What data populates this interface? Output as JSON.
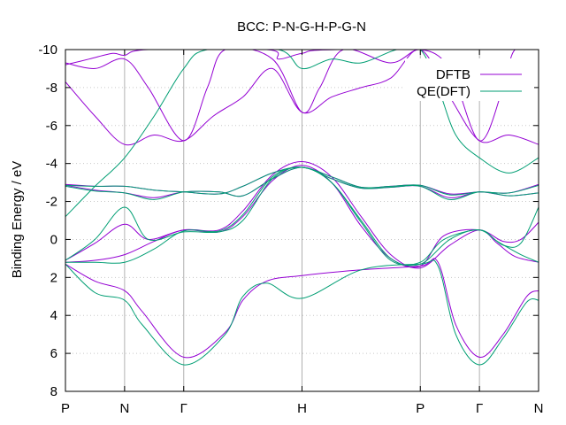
{
  "chart_data": {
    "type": "line",
    "title": "BCC: P-N-G-H-P-G-N",
    "ylabel": "Binding Energy / eV",
    "xlabel": "",
    "ylim": [
      8,
      -10
    ],
    "y_axis_inverted": true,
    "y_ticks": [
      "-10",
      "-8",
      "-6",
      "-4",
      "-2",
      "0",
      "2",
      "4",
      "6",
      "8"
    ],
    "y_tick_values": [
      -10,
      -8,
      -6,
      -4,
      -2,
      0,
      2,
      4,
      6,
      8
    ],
    "x_ticks": [
      "P",
      "N",
      "Γ",
      "H",
      "P",
      "Γ",
      "N"
    ],
    "x_tick_positions": [
      0,
      1,
      2,
      4,
      6,
      7,
      8
    ],
    "xlim": [
      0,
      8
    ],
    "grid": "vertical at k-points, dotted horizontal",
    "legend_position": "top-right",
    "series": [
      {
        "name": "DFTB",
        "color": "#9400d3",
        "bands": [
          [
            [
              0,
              1.3
            ],
            [
              0.5,
              2.2
            ],
            [
              1,
              2.7
            ],
            [
              1.3,
              3.8
            ],
            [
              2,
              6.2
            ],
            [
              2.7,
              4.9
            ],
            [
              3,
              3.2
            ],
            [
              3.4,
              2.2
            ],
            [
              4,
              1.9
            ],
            [
              5,
              1.6
            ],
            [
              6,
              1.4
            ],
            [
              6.3,
              1.2
            ],
            [
              6.6,
              4.5
            ],
            [
              7,
              6.2
            ],
            [
              7.4,
              5.0
            ],
            [
              7.8,
              3.0
            ],
            [
              8,
              2.7
            ]
          ],
          [
            [
              0,
              1.2
            ],
            [
              0.5,
              1.1
            ],
            [
              1,
              0.8
            ],
            [
              1.5,
              0.1
            ],
            [
              2,
              -0.5
            ],
            [
              2.6,
              -0.5
            ],
            [
              3,
              -1.5
            ],
            [
              3.5,
              -3.4
            ],
            [
              4,
              -4.1
            ],
            [
              4.5,
              -3.3
            ],
            [
              5,
              -1.2
            ],
            [
              5.5,
              0.8
            ],
            [
              6,
              1.5
            ],
            [
              6.5,
              0.3
            ],
            [
              7,
              -0.5
            ],
            [
              7.3,
              0.2
            ],
            [
              7.6,
              0.9
            ],
            [
              8,
              1.2
            ]
          ],
          [
            [
              0,
              1.1
            ],
            [
              0.5,
              0.2
            ],
            [
              1,
              -0.8
            ],
            [
              1.4,
              0.0
            ],
            [
              2,
              -0.5
            ],
            [
              2.6,
              -0.4
            ],
            [
              3,
              -1.2
            ],
            [
              3.5,
              -3.1
            ],
            [
              4,
              -3.9
            ],
            [
              4.5,
              -3.0
            ],
            [
              5,
              -0.7
            ],
            [
              5.5,
              1.0
            ],
            [
              6,
              1.4
            ],
            [
              6.4,
              -0.2
            ],
            [
              7,
              -0.5
            ],
            [
              7.4,
              0.1
            ],
            [
              7.7,
              0.0
            ],
            [
              8,
              -0.9
            ]
          ],
          [
            [
              0,
              -2.9
            ],
            [
              0.5,
              -2.8
            ],
            [
              1,
              -2.8
            ],
            [
              1.5,
              -2.6
            ],
            [
              2,
              -2.5
            ],
            [
              2.6,
              -2.4
            ],
            [
              3,
              -2.8
            ],
            [
              3.5,
              -3.5
            ],
            [
              4,
              -3.8
            ],
            [
              4.5,
              -3.3
            ],
            [
              5,
              -2.75
            ],
            [
              5.5,
              -2.8
            ],
            [
              6,
              -2.85
            ],
            [
              6.5,
              -2.4
            ],
            [
              7,
              -2.5
            ],
            [
              7.5,
              -2.45
            ],
            [
              8,
              -2.9
            ]
          ],
          [
            [
              0,
              -2.85
            ],
            [
              0.5,
              -2.6
            ],
            [
              1,
              -2.45
            ],
            [
              1.5,
              -2.2
            ],
            [
              2,
              -2.5
            ],
            [
              2.6,
              -2.5
            ],
            [
              3,
              -2.3
            ],
            [
              3.5,
              -3.2
            ],
            [
              4,
              -3.8
            ],
            [
              4.5,
              -3.2
            ],
            [
              5,
              -2.7
            ],
            [
              5.5,
              -2.75
            ],
            [
              6,
              -2.8
            ],
            [
              6.5,
              -2.2
            ],
            [
              7,
              -2.5
            ],
            [
              7.5,
              -2.3
            ],
            [
              8,
              -2.45
            ]
          ],
          [
            [
              0,
              -8.3
            ],
            [
              0.5,
              -6.5
            ],
            [
              1,
              -5.0
            ],
            [
              1.5,
              -5.5
            ],
            [
              2,
              -5.2
            ],
            [
              2.5,
              -6.5
            ],
            [
              3,
              -7.5
            ],
            [
              3.5,
              -9.0
            ],
            [
              4,
              -6.7
            ],
            [
              4.5,
              -7.5
            ],
            [
              5,
              -8.0
            ],
            [
              5.5,
              -8.5
            ],
            [
              6,
              -10.3
            ],
            [
              6.5,
              -7.5
            ],
            [
              7,
              -5.2
            ],
            [
              7.5,
              -5.5
            ],
            [
              8,
              -5.0
            ]
          ],
          [
            [
              0,
              -9.3
            ],
            [
              0.5,
              -9.0
            ],
            [
              1,
              -9.5
            ],
            [
              1.4,
              -8.0
            ],
            [
              2,
              -5.2
            ],
            [
              2.4,
              -8.0
            ],
            [
              2.7,
              -10.3
            ],
            [
              3.5,
              -9.5
            ],
            [
              4,
              -6.7
            ],
            [
              4.3,
              -8.0
            ],
            [
              4.7,
              -10.3
            ],
            [
              5.5,
              -9.3
            ],
            [
              6,
              -10.3
            ],
            [
              6.5,
              -9.0
            ],
            [
              7,
              -5.2
            ],
            [
              7.4,
              -8.0
            ],
            [
              7.6,
              -10.3
            ],
            [
              8,
              -10.3
            ]
          ],
          [
            [
              0,
              -9.2
            ],
            [
              0.4,
              -9.5
            ],
            [
              0.8,
              -9.8
            ],
            [
              1,
              -9.7
            ],
            [
              1.4,
              -10.3
            ],
            [
              3.4,
              -10.3
            ],
            [
              3.6,
              -9.5
            ],
            [
              4,
              -9.8
            ],
            [
              4.6,
              -10.3
            ],
            [
              8,
              -10.3
            ]
          ]
        ]
      },
      {
        "name": "QE(DFT)",
        "color": "#009e73",
        "bands": [
          [
            [
              0,
              1.3
            ],
            [
              0.5,
              2.8
            ],
            [
              1,
              3.2
            ],
            [
              1.3,
              4.5
            ],
            [
              2,
              6.6
            ],
            [
              2.7,
              5.0
            ],
            [
              3,
              3.0
            ],
            [
              3.4,
              2.3
            ],
            [
              4,
              3.1
            ],
            [
              5,
              1.6
            ],
            [
              6,
              1.3
            ],
            [
              6.3,
              1.4
            ],
            [
              6.6,
              5.0
            ],
            [
              7,
              6.6
            ],
            [
              7.4,
              5.2
            ],
            [
              7.8,
              3.3
            ],
            [
              8,
              3.2
            ]
          ],
          [
            [
              0,
              1.1
            ],
            [
              0.5,
              0.0
            ],
            [
              1,
              -1.7
            ],
            [
              1.4,
              0.0
            ],
            [
              2,
              -0.4
            ],
            [
              2.6,
              -0.4
            ],
            [
              3,
              -1.0
            ],
            [
              3.5,
              -3.2
            ],
            [
              4,
              -3.8
            ],
            [
              4.5,
              -3.0
            ],
            [
              5,
              -1.0
            ],
            [
              5.5,
              1.0
            ],
            [
              6,
              1.3
            ],
            [
              6.5,
              0.0
            ],
            [
              7,
              -0.5
            ],
            [
              7.4,
              0.3
            ],
            [
              7.7,
              0.2
            ],
            [
              8,
              -1.7
            ]
          ],
          [
            [
              0,
              1.2
            ],
            [
              0.5,
              1.2
            ],
            [
              1,
              1.2
            ],
            [
              1.5,
              0.5
            ],
            [
              2,
              -0.45
            ],
            [
              2.6,
              -0.45
            ],
            [
              3,
              -1.3
            ],
            [
              3.5,
              -3.3
            ],
            [
              4,
              -3.8
            ],
            [
              4.5,
              -3.0
            ],
            [
              5,
              -0.9
            ],
            [
              5.5,
              1.1
            ],
            [
              6,
              1.2
            ],
            [
              6.4,
              0.0
            ],
            [
              7,
              -0.5
            ],
            [
              7.3,
              0.1
            ],
            [
              7.7,
              0.8
            ],
            [
              8,
              1.2
            ]
          ],
          [
            [
              0,
              -2.85
            ],
            [
              0.5,
              -2.8
            ],
            [
              1,
              -2.8
            ],
            [
              1.5,
              -2.6
            ],
            [
              2,
              -2.5
            ],
            [
              2.6,
              -2.4
            ],
            [
              3,
              -2.8
            ],
            [
              3.5,
              -3.5
            ],
            [
              4,
              -3.8
            ],
            [
              4.5,
              -3.3
            ],
            [
              5,
              -2.75
            ],
            [
              5.5,
              -2.8
            ],
            [
              6,
              -2.85
            ],
            [
              6.5,
              -2.35
            ],
            [
              7,
              -2.5
            ],
            [
              7.5,
              -2.45
            ],
            [
              8,
              -2.85
            ]
          ],
          [
            [
              0,
              -2.8
            ],
            [
              0.5,
              -2.55
            ],
            [
              1,
              -2.45
            ],
            [
              1.5,
              -2.1
            ],
            [
              2,
              -2.5
            ],
            [
              2.6,
              -2.5
            ],
            [
              3,
              -2.3
            ],
            [
              3.5,
              -3.2
            ],
            [
              4,
              -3.8
            ],
            [
              4.5,
              -3.2
            ],
            [
              5,
              -2.7
            ],
            [
              5.5,
              -2.75
            ],
            [
              6,
              -2.8
            ],
            [
              6.5,
              -2.1
            ],
            [
              7,
              -2.5
            ],
            [
              7.5,
              -2.3
            ],
            [
              8,
              -2.45
            ]
          ],
          [
            [
              0,
              -1.2
            ],
            [
              0.5,
              -2.8
            ],
            [
              1,
              -4.3
            ],
            [
              1.5,
              -6.5
            ],
            [
              2,
              -9.0
            ],
            [
              2.4,
              -10.3
            ],
            [
              3.6,
              -10.3
            ],
            [
              4,
              -9.0
            ],
            [
              4.5,
              -9.5
            ],
            [
              5,
              -9.3
            ],
            [
              5.6,
              -10.3
            ],
            [
              6,
              -10.3
            ],
            [
              6.3,
              -8.0
            ],
            [
              6.6,
              -5.5
            ],
            [
              7,
              -4.3
            ],
            [
              7.5,
              -3.5
            ],
            [
              8,
              -4.3
            ]
          ]
        ]
      }
    ]
  }
}
